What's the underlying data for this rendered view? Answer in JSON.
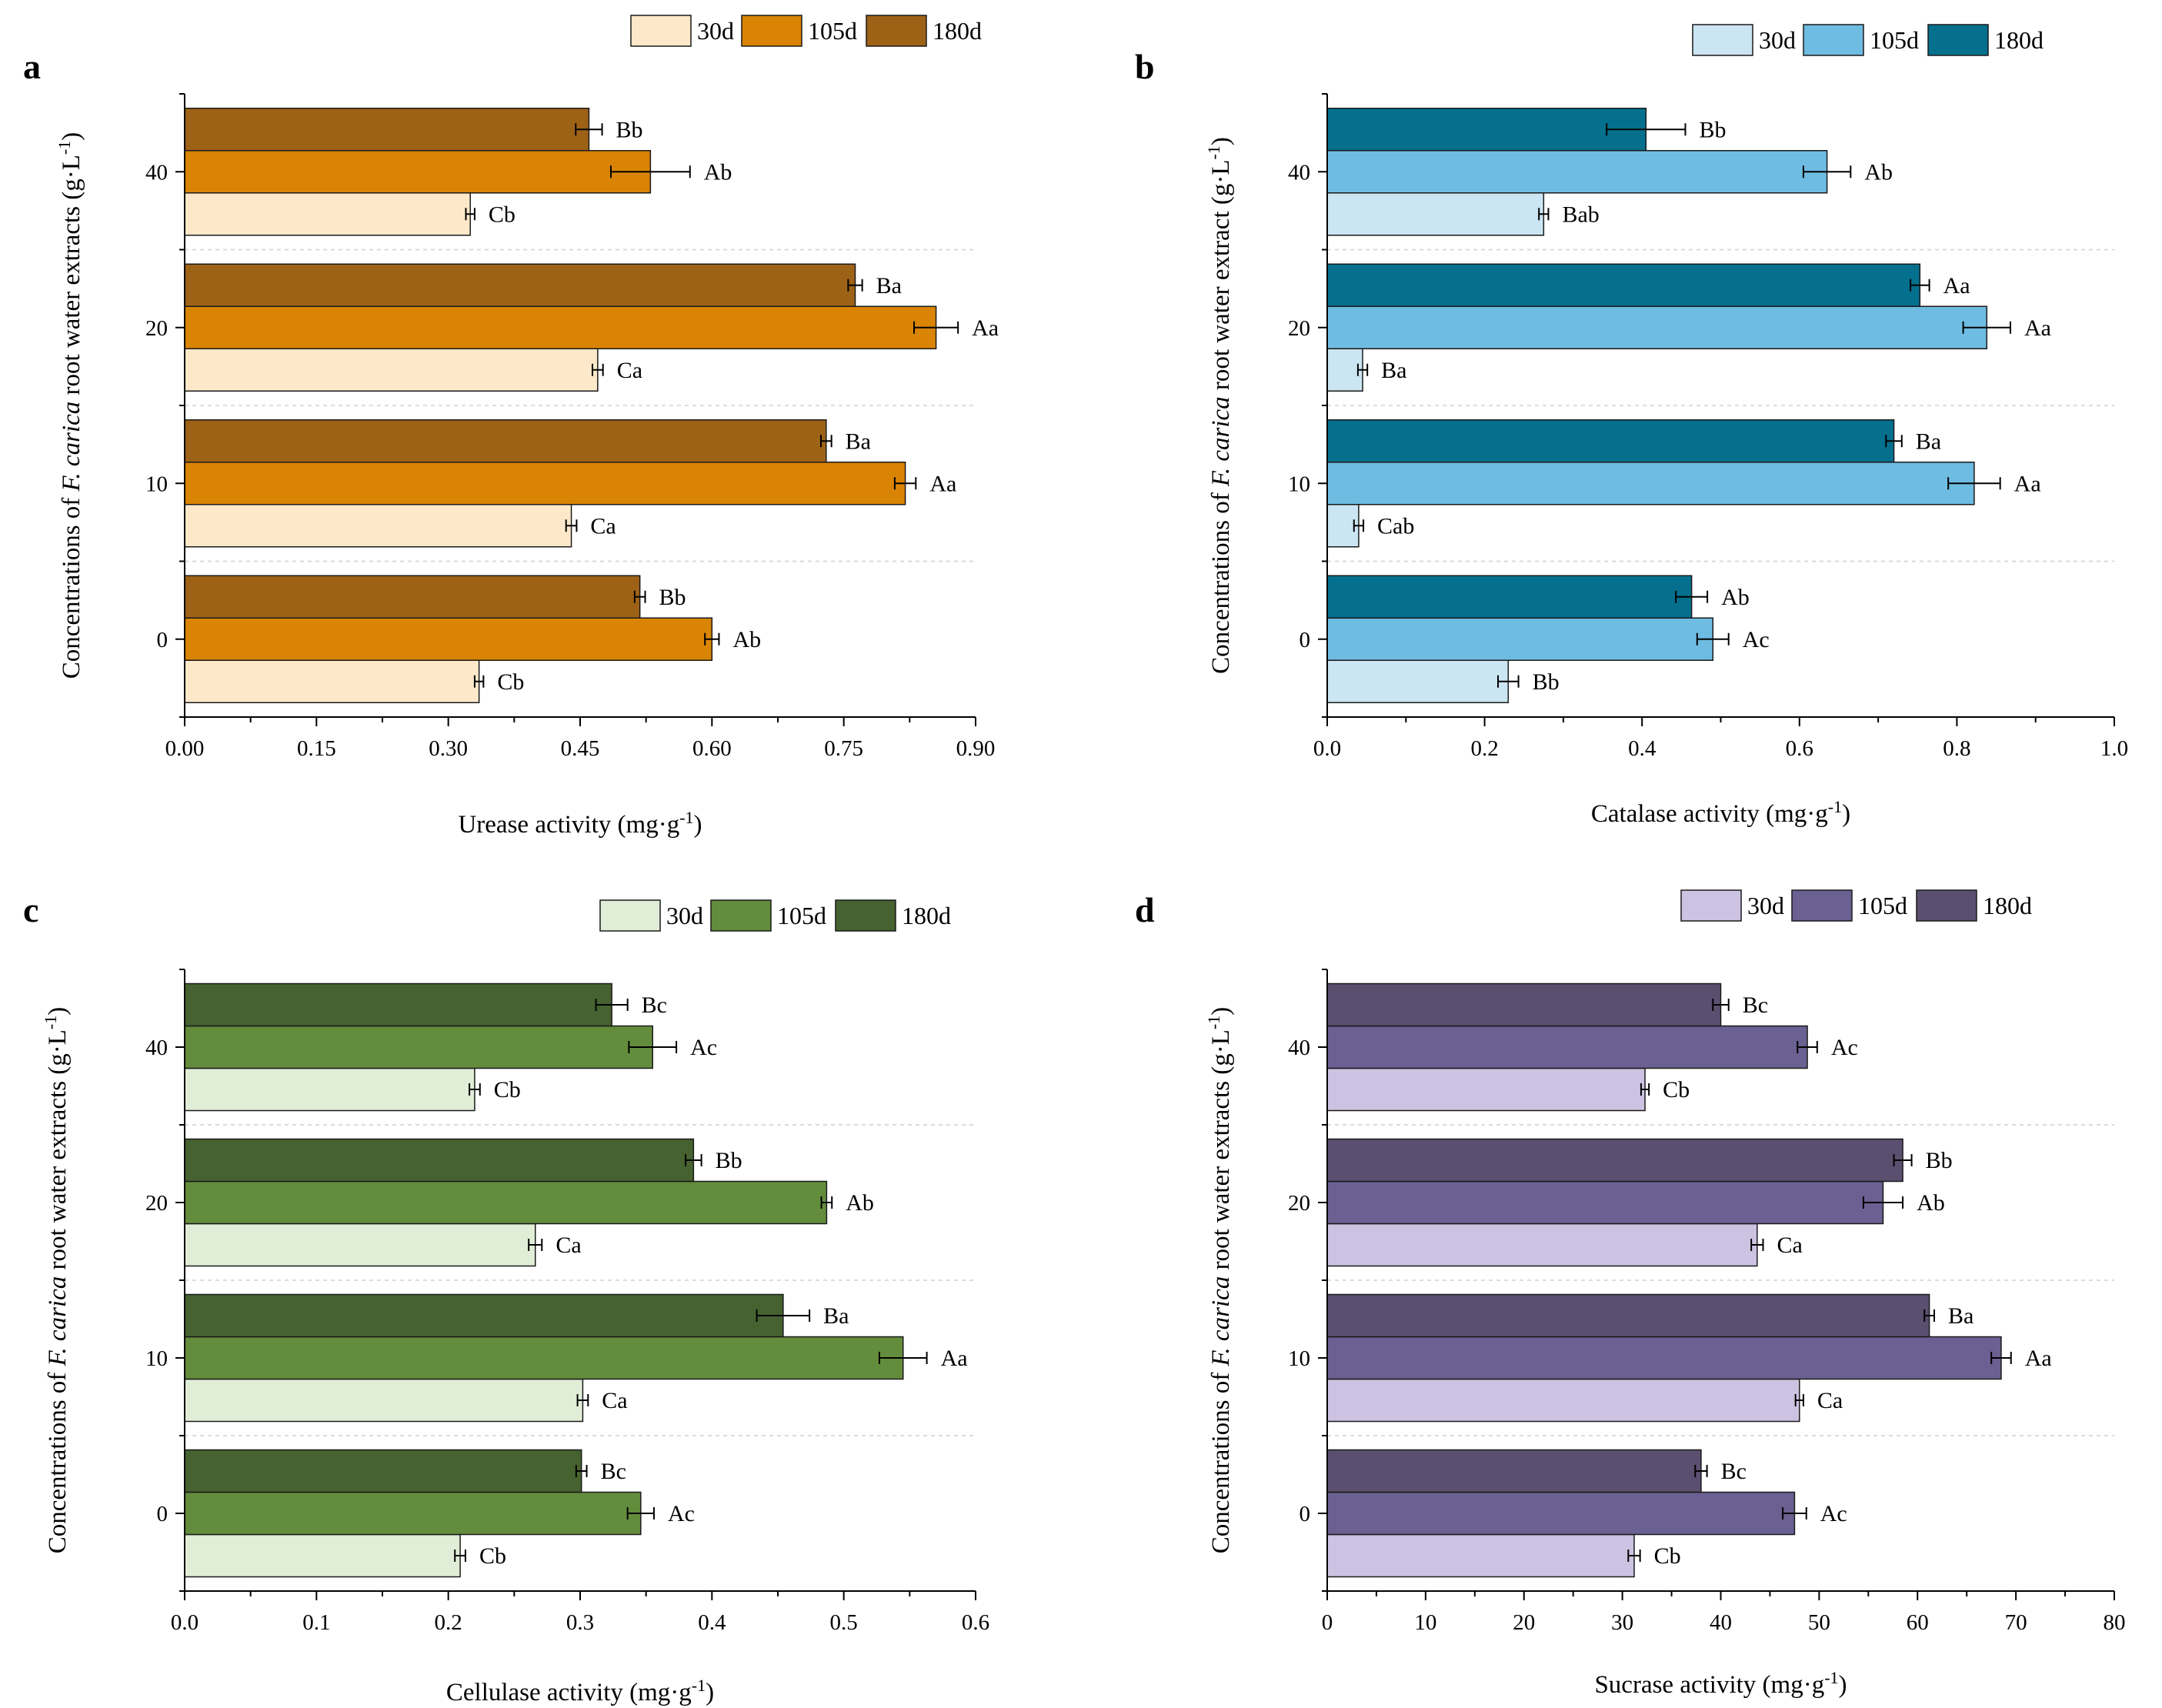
{
  "chart_data": [
    {
      "type": "bar",
      "orientation": "horizontal",
      "panel_label": "a",
      "title": "",
      "xlabel": "Urease activity (mg·g",
      "xlabel_sup": "-1",
      "xlabel_close": ")",
      "ylabel_pre": "Concentrations of ",
      "ylabel_italic": "F. carica",
      "ylabel_post": " root water extracts (g·L",
      "ylabel_sup": "-1",
      "ylabel_close": ")",
      "categories": [
        "0",
        "10",
        "20",
        "40"
      ],
      "xlim": [
        0,
        0.9
      ],
      "xticks": [
        "0.00",
        "0.15",
        "0.30",
        "0.45",
        "0.60",
        "0.75",
        "0.90"
      ],
      "xtick_values": [
        0,
        0.15,
        0.3,
        0.45,
        0.6,
        0.75,
        0.9
      ],
      "colors": [
        "#fde9c9",
        "#d98404",
        "#9e6217"
      ],
      "legend": [
        "30d",
        "105d",
        "180d"
      ],
      "series": [
        {
          "name": "30d",
          "values": [
            0.335,
            0.44,
            0.47,
            0.325
          ],
          "errors": [
            0.005,
            0.006,
            0.006,
            0.005
          ],
          "labels": [
            "Cb",
            "Ca",
            "Ca",
            "Cb"
          ]
        },
        {
          "name": "105d",
          "values": [
            0.6,
            0.82,
            0.855,
            0.53
          ],
          "errors": [
            0.008,
            0.012,
            0.025,
            0.045
          ],
          "labels": [
            "Ab",
            "Aa",
            "Aa",
            "Ab"
          ]
        },
        {
          "name": "180d",
          "values": [
            0.518,
            0.73,
            0.763,
            0.46
          ],
          "errors": [
            0.006,
            0.006,
            0.008,
            0.015
          ],
          "labels": [
            "Bb",
            "Ba",
            "Ba",
            "Bb"
          ]
        }
      ]
    },
    {
      "type": "bar",
      "orientation": "horizontal",
      "panel_label": "b",
      "title": "",
      "xlabel": "Catalase activity (mg·g",
      "xlabel_sup": "-1",
      "xlabel_close": ")",
      "ylabel_pre": "Concentrations of ",
      "ylabel_italic": "F. carica",
      "ylabel_post": " root water extract (g·L",
      "ylabel_sup": "-1",
      "ylabel_close": ")",
      "categories": [
        "0",
        "10",
        "20",
        "40"
      ],
      "xlim": [
        0,
        1.0
      ],
      "xticks": [
        "0.0",
        "0.2",
        "0.4",
        "0.6",
        "0.8",
        "1.0"
      ],
      "xtick_values": [
        0,
        0.2,
        0.4,
        0.6,
        0.8,
        1.0
      ],
      "colors": [
        "#cbe5f3",
        "#6fbce2",
        "#04708e"
      ],
      "legend": [
        "30d",
        "105d",
        "180d"
      ],
      "series": [
        {
          "name": "30d",
          "values": [
            0.23,
            0.04,
            0.045,
            0.275
          ],
          "errors": [
            0.013,
            0.006,
            0.006,
            0.006
          ],
          "labels": [
            "Bb",
            "Cab",
            "Ba",
            "Bab"
          ]
        },
        {
          "name": "105d",
          "values": [
            0.49,
            0.822,
            0.838,
            0.635
          ],
          "errors": [
            0.02,
            0.033,
            0.03,
            0.03
          ],
          "labels": [
            "Ac",
            "Aa",
            "Aa",
            "Ab"
          ]
        },
        {
          "name": "180d",
          "values": [
            0.463,
            0.72,
            0.753,
            0.405
          ],
          "errors": [
            0.02,
            0.01,
            0.012,
            0.05
          ],
          "labels": [
            "Ab",
            "Ba",
            "Aa",
            "Bb"
          ]
        }
      ]
    },
    {
      "type": "bar",
      "orientation": "horizontal",
      "panel_label": "c",
      "title": "",
      "xlabel": "Cellulase activity (mg·g",
      "xlabel_sup": "-1",
      "xlabel_close": ")",
      "ylabel_pre": "Concentrations of ",
      "ylabel_italic": "F. carica",
      "ylabel_post": " root water extracts (g·L",
      "ylabel_sup": "-1",
      "ylabel_close": ")",
      "categories": [
        "0",
        "10",
        "20",
        "40"
      ],
      "xlim": [
        0,
        0.6
      ],
      "xticks": [
        "0.0",
        "0.1",
        "0.2",
        "0.3",
        "0.4",
        "0.5",
        "0.6"
      ],
      "xtick_values": [
        0,
        0.1,
        0.2,
        0.3,
        0.4,
        0.5,
        0.6
      ],
      "colors": [
        "#e1eed7",
        "#638c3c",
        "#466230"
      ],
      "legend": [
        "30d",
        "105d",
        "180d"
      ],
      "series": [
        {
          "name": "30d",
          "values": [
            0.209,
            0.302,
            0.266,
            0.22
          ],
          "errors": [
            0.004,
            0.004,
            0.005,
            0.004
          ],
          "labels": [
            "Cb",
            "Ca",
            "Ca",
            "Cb"
          ]
        },
        {
          "name": "105d",
          "values": [
            0.346,
            0.545,
            0.487,
            0.355
          ],
          "errors": [
            0.01,
            0.018,
            0.004,
            0.018
          ],
          "labels": [
            "Ac",
            "Aa",
            "Ab",
            "Ac"
          ]
        },
        {
          "name": "180d",
          "values": [
            0.301,
            0.454,
            0.386,
            0.324
          ],
          "errors": [
            0.004,
            0.02,
            0.006,
            0.012
          ],
          "labels": [
            "Bc",
            "Ba",
            "Bb",
            "Bc"
          ]
        }
      ]
    },
    {
      "type": "bar",
      "orientation": "horizontal",
      "panel_label": "d",
      "title": "",
      "xlabel": "Sucrase activity (mg·g",
      "xlabel_sup": "-1",
      "xlabel_close": ")",
      "ylabel_pre": "Concentrations of ",
      "ylabel_italic": "F. carica",
      "ylabel_post": " root water extracts (g·L",
      "ylabel_sup": "-1",
      "ylabel_close": ")",
      "categories": [
        "0",
        "10",
        "20",
        "40"
      ],
      "xlim": [
        0,
        80
      ],
      "xticks": [
        "0",
        "10",
        "20",
        "30",
        "40",
        "50",
        "60",
        "70",
        "80"
      ],
      "xtick_values": [
        0,
        10,
        20,
        30,
        40,
        50,
        60,
        70,
        80
      ],
      "colors": [
        "#ccc3e2",
        "#6a6091",
        "#5b4f70"
      ],
      "legend": [
        "30d",
        "105d",
        "180d"
      ],
      "series": [
        {
          "name": "30d",
          "values": [
            31.2,
            48.0,
            43.7,
            32.3
          ],
          "errors": [
            0.6,
            0.4,
            0.6,
            0.4
          ],
          "labels": [
            "Cb",
            "Ca",
            "Ca",
            "Cb"
          ]
        },
        {
          "name": "105d",
          "values": [
            47.5,
            68.5,
            56.5,
            48.8
          ],
          "errors": [
            1.2,
            1.0,
            2.0,
            1.0
          ],
          "labels": [
            "Ac",
            "Aa",
            "Ab",
            "Ac"
          ]
        },
        {
          "name": "180d",
          "values": [
            38.0,
            61.2,
            58.5,
            40.0
          ],
          "errors": [
            0.6,
            0.5,
            0.9,
            0.8
          ],
          "labels": [
            "Bc",
            "Ba",
            "Bb",
            "Bc"
          ]
        }
      ]
    }
  ]
}
